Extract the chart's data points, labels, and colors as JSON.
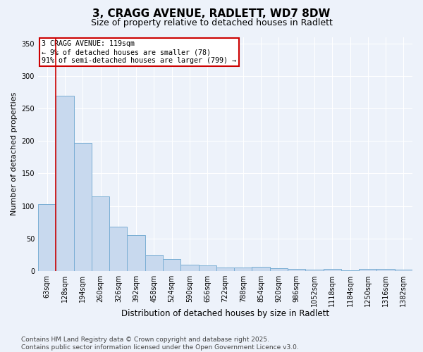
{
  "title": "3, CRAGG AVENUE, RADLETT, WD7 8DW",
  "subtitle": "Size of property relative to detached houses in Radlett",
  "xlabel": "Distribution of detached houses by size in Radlett",
  "ylabel": "Number of detached properties",
  "bar_labels": [
    "63sqm",
    "128sqm",
    "194sqm",
    "260sqm",
    "326sqm",
    "392sqm",
    "458sqm",
    "524sqm",
    "590sqm",
    "656sqm",
    "722sqm",
    "788sqm",
    "854sqm",
    "920sqm",
    "986sqm",
    "1052sqm",
    "1118sqm",
    "1184sqm",
    "1250sqm",
    "1316sqm",
    "1382sqm"
  ],
  "bar_values": [
    103,
    270,
    197,
    115,
    68,
    55,
    25,
    18,
    10,
    9,
    5,
    5,
    6,
    4,
    3,
    2,
    3,
    1,
    3,
    3,
    2
  ],
  "bar_color": "#c8d9ee",
  "bar_edge_color": "#7aaed4",
  "annotation_box_text": "3 CRAGG AVENUE: 119sqm\n← 9% of detached houses are smaller (78)\n91% of semi-detached houses are larger (799) →",
  "annotation_box_color": "#ffffff",
  "annotation_box_edge_color": "#cc0000",
  "vline_color": "#cc0000",
  "vline_x": 0.5,
  "ylim": [
    0,
    360
  ],
  "yticks": [
    0,
    50,
    100,
    150,
    200,
    250,
    300,
    350
  ],
  "footnote": "Contains HM Land Registry data © Crown copyright and database right 2025.\nContains public sector information licensed under the Open Government Licence v3.0.",
  "bg_color": "#edf2fa",
  "grid_color": "#ffffff",
  "title_fontsize": 11,
  "subtitle_fontsize": 9,
  "tick_fontsize": 7,
  "ylabel_fontsize": 8,
  "xlabel_fontsize": 8.5,
  "footnote_fontsize": 6.5
}
